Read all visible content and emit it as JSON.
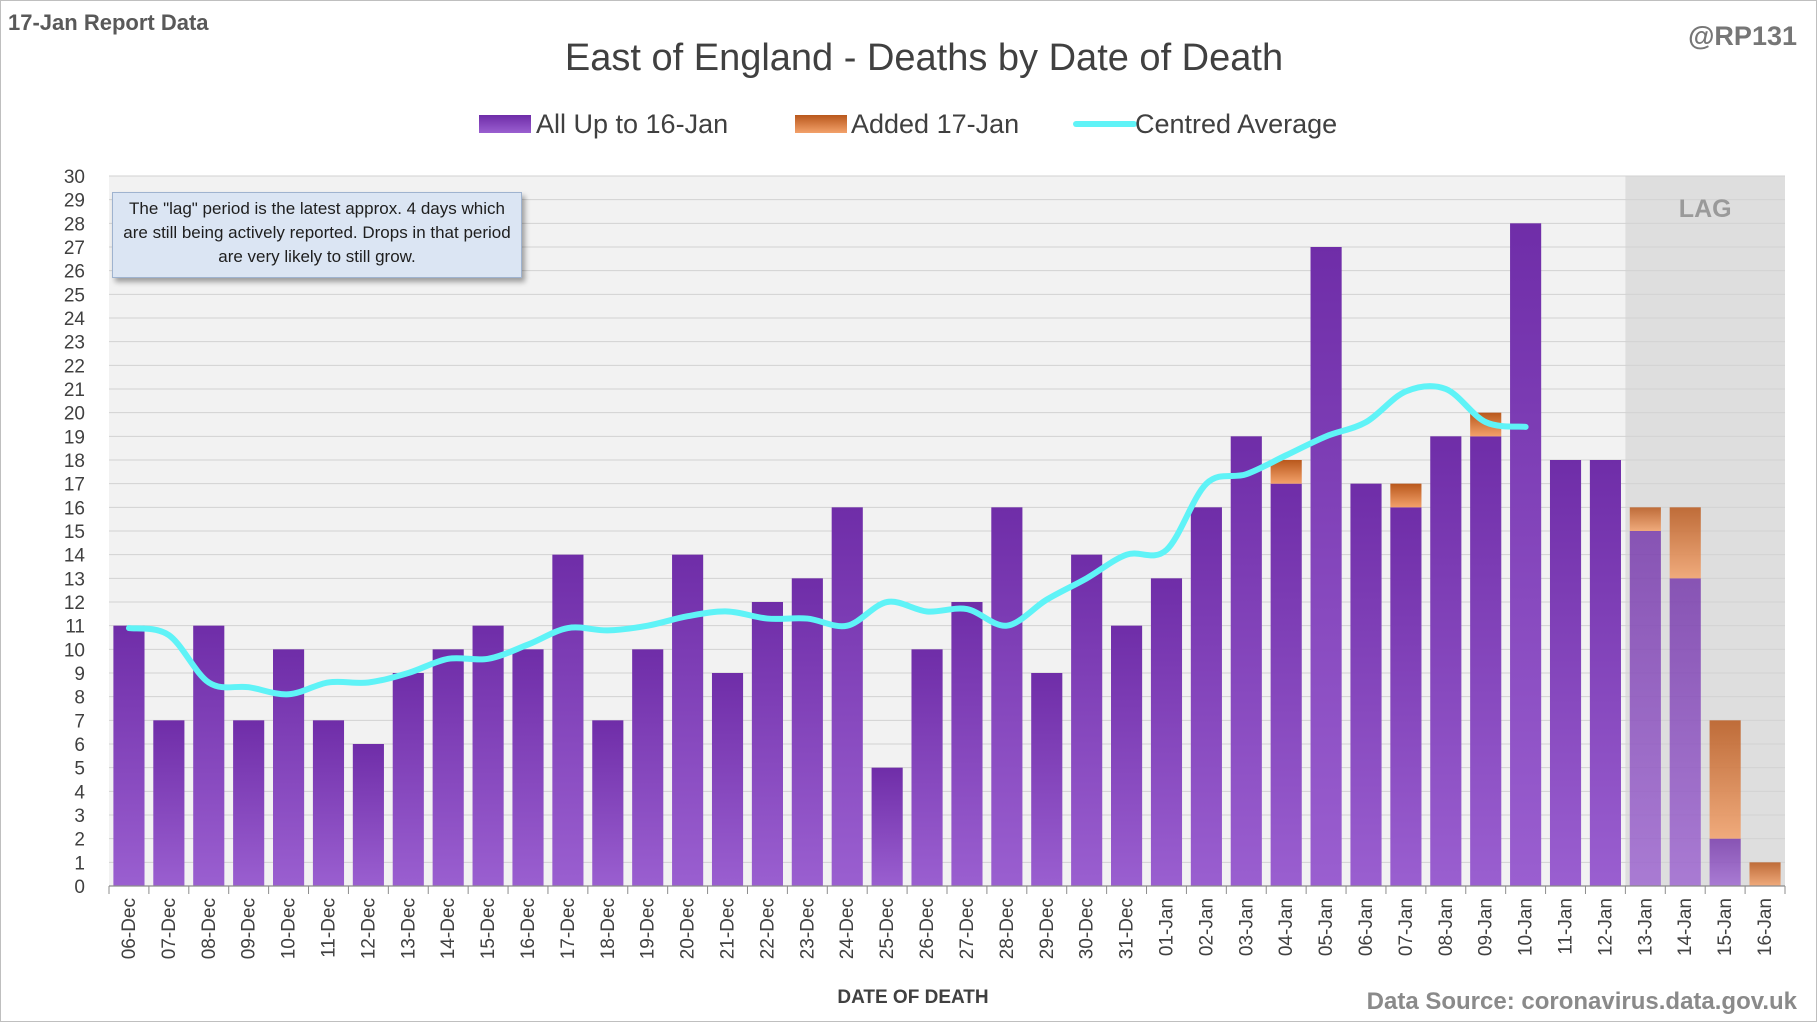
{
  "report_label": "17-Jan Report Data",
  "handle": "@RP131",
  "source": "Data Source: coronavirus.data.gov.uk",
  "note": "The \"lag\" period is the latest approx. 4 days which are still being actively reported. Drops in that period are very likely to still grow.",
  "lag_label": "LAG",
  "colors": {
    "base_top": "#6f2da8",
    "base_bottom": "#9a5fd0",
    "added_top": "#b9581c",
    "added_bottom": "#f3a16a",
    "average": "#5ff3f7",
    "lag_shade": "#dedede",
    "plot_bg": "#f2f2f2"
  },
  "chart_data": {
    "type": "bar",
    "stacked": true,
    "title": "East of England - Deaths by Date of Death",
    "xlabel": "DATE OF DEATH",
    "ylabel": "",
    "ylim": [
      0,
      30
    ],
    "yticks": [
      0,
      1,
      2,
      3,
      4,
      5,
      6,
      7,
      8,
      9,
      10,
      11,
      12,
      13,
      14,
      15,
      16,
      17,
      18,
      19,
      20,
      21,
      22,
      23,
      24,
      25,
      26,
      27,
      28,
      29,
      30
    ],
    "legend_position": "top",
    "grid": true,
    "lag_categories": [
      "13-Jan",
      "14-Jan",
      "15-Jan",
      "16-Jan"
    ],
    "categories": [
      "06-Dec",
      "07-Dec",
      "08-Dec",
      "09-Dec",
      "10-Dec",
      "11-Dec",
      "12-Dec",
      "13-Dec",
      "14-Dec",
      "15-Dec",
      "16-Dec",
      "17-Dec",
      "18-Dec",
      "19-Dec",
      "20-Dec",
      "21-Dec",
      "22-Dec",
      "23-Dec",
      "24-Dec",
      "25-Dec",
      "26-Dec",
      "27-Dec",
      "28-Dec",
      "29-Dec",
      "30-Dec",
      "31-Dec",
      "01-Jan",
      "02-Jan",
      "03-Jan",
      "04-Jan",
      "05-Jan",
      "06-Jan",
      "07-Jan",
      "08-Jan",
      "09-Jan",
      "10-Jan",
      "11-Jan",
      "12-Jan",
      "13-Jan",
      "14-Jan",
      "15-Jan",
      "16-Jan"
    ],
    "series": [
      {
        "name": "All Up to 16-Jan",
        "values": [
          11,
          7,
          11,
          7,
          10,
          7,
          6,
          9,
          10,
          11,
          10,
          14,
          7,
          10,
          14,
          9,
          12,
          13,
          16,
          5,
          10,
          12,
          16,
          9,
          14,
          11,
          13,
          16,
          19,
          17,
          27,
          17,
          16,
          19,
          19,
          28,
          18,
          18,
          15,
          13,
          2,
          0
        ]
      },
      {
        "name": "Added 17-Jan",
        "values": [
          0,
          0,
          0,
          0,
          0,
          0,
          0,
          0,
          0,
          0,
          0,
          0,
          0,
          0,
          0,
          0,
          0,
          0,
          0,
          0,
          0,
          0,
          0,
          0,
          0,
          0,
          0,
          0,
          0,
          1,
          0,
          0,
          1,
          0,
          1,
          0,
          0,
          0,
          1,
          3,
          5,
          1
        ]
      },
      {
        "name": "Centred Average",
        "type": "line",
        "values": [
          10.9,
          10.6,
          8.6,
          8.4,
          8.1,
          8.6,
          8.6,
          9.0,
          9.6,
          9.6,
          10.2,
          10.9,
          10.8,
          11.0,
          11.4,
          11.6,
          11.3,
          11.3,
          11.0,
          12.0,
          11.6,
          11.7,
          11.0,
          12.1,
          13.0,
          14.0,
          14.2,
          17.0,
          17.4,
          18.2,
          19.0,
          19.6,
          20.9,
          21.0,
          19.6,
          19.4,
          null,
          null,
          null,
          null,
          null,
          null
        ]
      }
    ]
  }
}
